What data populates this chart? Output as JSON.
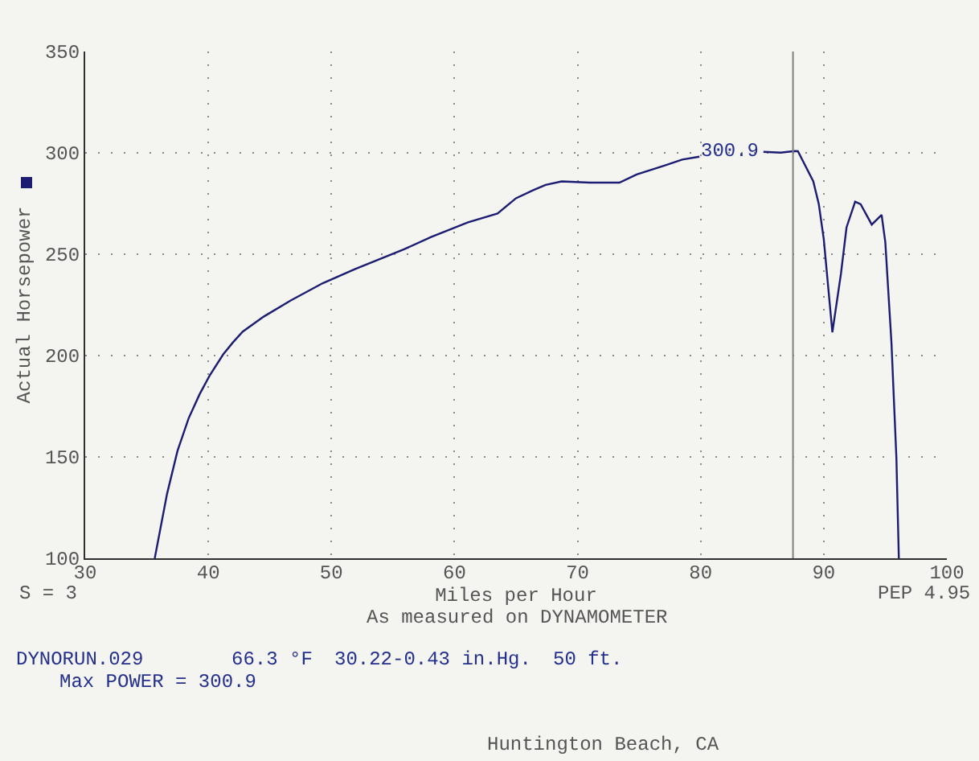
{
  "chart_data": {
    "type": "line",
    "xlabel": "Miles per Hour",
    "ylabel": "Actual Horsepower",
    "x": [
      35.65,
      36.65,
      37.5,
      38.4,
      39.3,
      40.1,
      41.2,
      42.0,
      42.8,
      44.5,
      46.7,
      49.3,
      51.9,
      55.9,
      58.1,
      61.1,
      63.5,
      65.0,
      66.4,
      67.4,
      68.7,
      71.0,
      73.4,
      74.8,
      77.1,
      78.5,
      79.9,
      82.5,
      85.1,
      86.5,
      87.65,
      87.9,
      89.15,
      89.6,
      90.0,
      90.7,
      91.4,
      91.85,
      92.55,
      93.0,
      93.9,
      94.7,
      95.0,
      95.5,
      95.9,
      96.1
    ],
    "series": [
      {
        "color": "#1c1c72",
        "values": [
          100,
          131.8,
          153,
          169,
          181,
          190,
          200.5,
          206.5,
          211.8,
          219.2,
          227.2,
          235.7,
          242.6,
          252.4,
          258.5,
          265.7,
          270.1,
          277.6,
          281.6,
          284.2,
          285.9,
          285.3,
          285.3,
          289.3,
          293.8,
          296.7,
          298.1,
          null,
          300.5,
          300.1,
          300.9,
          300.8,
          285.9,
          274.6,
          257.5,
          211.5,
          240.5,
          263.2,
          275.9,
          274.6,
          264.6,
          269.4,
          256,
          206.4,
          149.6,
          100
        ]
      }
    ],
    "xlim": [
      30,
      100
    ],
    "ylim": [
      100,
      350
    ],
    "xticks": [
      30,
      40,
      50,
      60,
      70,
      80,
      90,
      100
    ],
    "yticks": [
      100,
      150,
      200,
      250,
      300,
      350
    ],
    "grid": true,
    "line_style": "solid",
    "ref_lines": [
      {
        "axis": "x",
        "value": 87.5,
        "color": "#808080"
      }
    ],
    "annotations": [
      {
        "text": "300.9",
        "x": 87.65,
        "y": 300.9
      },
      "S = 3",
      "PEP 4.95",
      "As measured on DYNAMOMETER",
      "DYNORUN.029",
      "66.3 °F",
      "30.22-0.43 in.Hg.",
      "50 ft.",
      "Max POWER = 300.9",
      "Huntington Beach, CA"
    ]
  }
}
